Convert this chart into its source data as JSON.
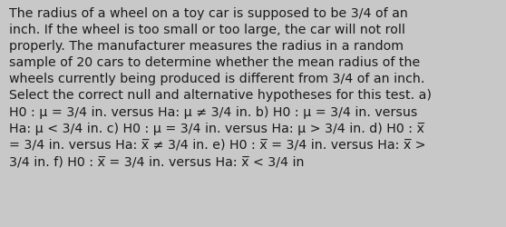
{
  "background_color": "#c8c8c8",
  "text_color": "#1a1a1a",
  "font_size": 10.2,
  "figsize": [
    5.58,
    2.51
  ],
  "dpi": 100,
  "lines": [
    "The radius of a wheel on a toy car is supposed to be 3/4 of an",
    "inch. If the wheel is too small or too large, the car will not roll",
    "properly. The manufacturer measures the radius in a random",
    "sample of 20 cars to determine whether the mean radius of the",
    "wheels currently being produced is different from 3/4 of an inch.",
    "Select the correct null and alternative hypotheses for this test. a)",
    "H0 : μ = 3/4 in. versus Ha: μ ≠ 3/4 in. b) H0 : μ = 3/4 in. versus",
    "Ha: μ < 3/4 in. c) H0 : μ = 3/4 in. versus Ha: μ > 3/4 in. d) H0 : x̅",
    "= 3/4 in. versus Ha: x̅ ≠ 3/4 in. e) H0 : x̅ = 3/4 in. versus Ha: x̅ >",
    "3/4 in. f) H0 : x̅ = 3/4 in. versus Ha: x̅ < 3/4 in"
  ]
}
